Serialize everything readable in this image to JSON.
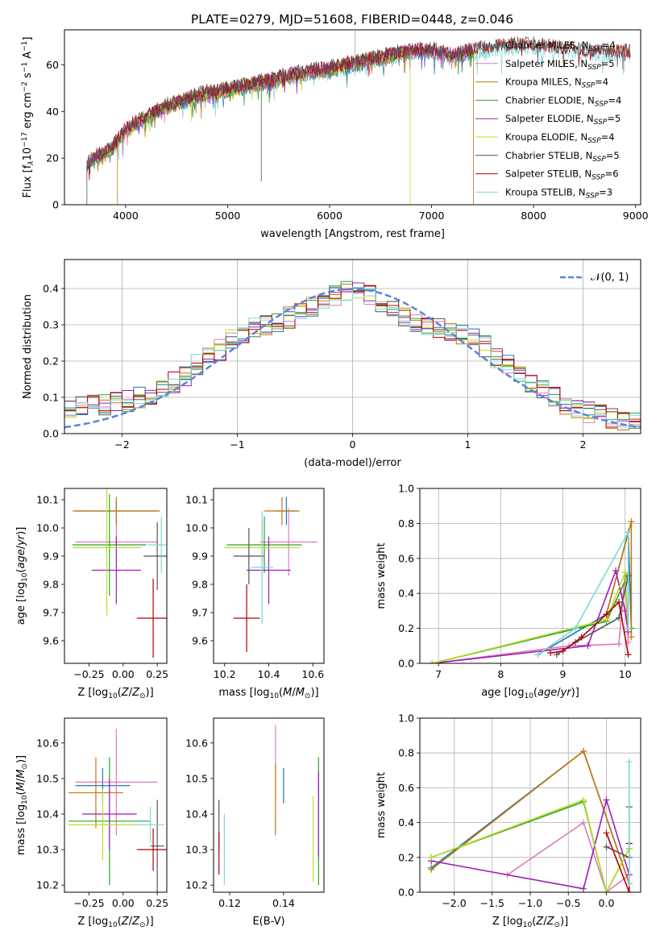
{
  "title": "PLATE=0279, MJD=51608, FIBERID=0448, z=0.046",
  "colors": {
    "Chabrier MILES": "#1f77b4",
    "Salpeter MILES": "#e377c2",
    "Kroupa MILES": "#c5780b",
    "Chabrier ELODIE": "#2ca02c",
    "Salpeter ELODIE": "#9b1fb4",
    "Kroupa ELODIE": "#bcdc22",
    "Chabrier STELIB": "#555555",
    "Salpeter STELIB": "#b40000",
    "Kroupa STELIB": "#7fd6dc",
    "gaussian": "#5b84dc"
  },
  "chart_data": [
    {
      "type": "line",
      "panel": "spectrum",
      "xlabel": "wavelength [Angstrom, rest frame]",
      "ylabel": "Flux [fλ10−17 erg cm−2 s−1 A−1]",
      "xlim": [
        3400,
        9050
      ],
      "ylim": [
        0,
        75
      ],
      "xticks": [
        "4000",
        "5000",
        "6000",
        "7000",
        "8000",
        "9000"
      ],
      "yticks": [
        "0",
        "20",
        "40",
        "60"
      ],
      "legend_placement": "upper-right",
      "legend": [
        {
          "model": "Chabrier MILES",
          "n": "4"
        },
        {
          "model": "Salpeter MILES",
          "n": "5"
        },
        {
          "model": "Kroupa MILES",
          "n": "4"
        },
        {
          "model": "Chabrier ELODIE",
          "n": "4"
        },
        {
          "model": "Salpeter ELODIE",
          "n": "5"
        },
        {
          "model": "Kroupa ELODIE",
          "n": "4"
        },
        {
          "model": "Chabrier STELIB",
          "n": "5"
        },
        {
          "model": "Salpeter STELIB",
          "n": "6"
        },
        {
          "model": "Kroupa STELIB",
          "n": "3"
        }
      ],
      "continuum": {
        "x": [
          3620,
          3700,
          3800,
          3900,
          4000,
          4100,
          4200,
          4300,
          4400,
          4600,
          4800,
          5000,
          5200,
          5400,
          5600,
          5800,
          6000,
          6200,
          6400,
          6600,
          6800,
          7000,
          7200,
          7400,
          7600,
          7800,
          8000,
          8200,
          8400,
          8600,
          8800,
          8950
        ],
        "y": [
          17,
          20,
          22,
          26,
          32,
          35,
          37,
          40,
          42,
          45,
          48,
          49,
          51,
          53,
          55,
          57,
          58,
          60,
          62,
          64,
          66,
          66,
          64,
          66,
          67,
          68,
          68,
          67,
          66,
          65,
          65,
          65
        ]
      }
    },
    {
      "type": "histogram",
      "panel": "residuals",
      "xlabel": "(data-model)/error",
      "ylabel": "Normed distribution",
      "xlim": [
        -2.5,
        2.5
      ],
      "ylim": [
        0,
        0.48
      ],
      "xticks": [
        "−2",
        "−1",
        "0",
        "1",
        "2"
      ],
      "yticks": [
        "0.0",
        "0.1",
        "0.2",
        "0.3",
        "0.4"
      ],
      "grid": true,
      "legend": "𝒩(0, 1)",
      "legend_placement": "upper-right",
      "bin_width": 0.1,
      "base_profile": [
        0.07,
        0.08,
        0.08,
        0.08,
        0.09,
        0.09,
        0.1,
        0.11,
        0.12,
        0.14,
        0.16,
        0.19,
        0.21,
        0.23,
        0.26,
        0.27,
        0.29,
        0.3,
        0.31,
        0.32,
        0.33,
        0.35,
        0.37,
        0.38,
        0.39,
        0.39,
        0.38,
        0.36,
        0.34,
        0.32,
        0.31,
        0.3,
        0.29,
        0.28,
        0.27,
        0.26,
        0.24,
        0.21,
        0.19,
        0.17,
        0.14,
        0.12,
        0.1,
        0.08,
        0.07,
        0.06,
        0.05,
        0.04,
        0.03,
        0.03
      ]
    },
    {
      "type": "scatter",
      "panel": "age-vs-Z",
      "xlabel": "Z [log10(Z/Z⊙)]",
      "ylabel": "age  [log10(age/yr)]",
      "xlim": [
        -0.43,
        0.32
      ],
      "ylim": [
        9.52,
        10.14
      ],
      "xticks": [
        "−0.25",
        "0.00",
        "0.25"
      ],
      "yticks": [
        "9.6",
        "9.7",
        "9.8",
        "9.9",
        "10.0",
        "10.1"
      ],
      "points": [
        {
          "model": "Chabrier MILES",
          "x": -0.05,
          "xerr": 0.3,
          "y": 10.06,
          "yerr": 0.04
        },
        {
          "model": "Salpeter MILES",
          "x": -0.05,
          "xerr": 0.3,
          "y": 9.95,
          "yerr": 0.08
        },
        {
          "model": "Kroupa MILES",
          "x": -0.05,
          "xerr": 0.32,
          "y": 10.06,
          "yerr": 0.05
        },
        {
          "model": "Chabrier ELODIE",
          "x": -0.1,
          "xerr": 0.27,
          "y": 9.94,
          "yerr": 0.18
        },
        {
          "model": "Salpeter ELODIE",
          "x": -0.05,
          "xerr": 0.18,
          "y": 9.85,
          "yerr": 0.12
        },
        {
          "model": "Kroupa ELODIE",
          "x": -0.12,
          "xerr": 0.25,
          "y": 9.93,
          "yerr": 0.24
        },
        {
          "model": "Chabrier STELIB",
          "x": 0.25,
          "xerr": 0.1,
          "y": 9.9,
          "yerr": 0.12
        },
        {
          "model": "Salpeter STELIB",
          "x": 0.22,
          "xerr": 0.12,
          "y": 9.68,
          "yerr": 0.14
        },
        {
          "model": "Kroupa STELIB",
          "x": 0.28,
          "xerr": 0.1,
          "y": 9.94,
          "yerr": 0.1
        }
      ]
    },
    {
      "type": "scatter",
      "panel": "age-vs-mass",
      "xlabel": "mass [log10(M/M⊙)]",
      "ylabel": "",
      "xlim": [
        10.15,
        10.65
      ],
      "ylim": [
        9.52,
        10.14
      ],
      "xticks": [
        "10.2",
        "10.4",
        "10.6"
      ],
      "yticks": [
        "9.6",
        "9.7",
        "9.8",
        "9.9",
        "10.0",
        "10.1"
      ],
      "points": [
        {
          "model": "Chabrier MILES",
          "x": 10.48,
          "xerr": 0.05,
          "y": 10.06,
          "yerr": 0.05
        },
        {
          "model": "Salpeter MILES",
          "x": 10.49,
          "xerr": 0.13,
          "y": 9.95,
          "yerr": 0.12
        },
        {
          "model": "Kroupa MILES",
          "x": 10.46,
          "xerr": 0.08,
          "y": 10.06,
          "yerr": 0.05
        },
        {
          "model": "Chabrier ELODIE",
          "x": 10.38,
          "xerr": 0.17,
          "y": 9.94,
          "yerr": 0.1
        },
        {
          "model": "Salpeter ELODIE",
          "x": 10.4,
          "xerr": 0.1,
          "y": 9.85,
          "yerr": 0.12
        },
        {
          "model": "Kroupa ELODIE",
          "x": 10.37,
          "xerr": 0.17,
          "y": 9.93,
          "yerr": 0.1
        },
        {
          "model": "Chabrier STELIB",
          "x": 10.31,
          "xerr": 0.07,
          "y": 9.9,
          "yerr": 0.1
        },
        {
          "model": "Salpeter STELIB",
          "x": 10.3,
          "xerr": 0.06,
          "y": 9.68,
          "yerr": 0.12
        },
        {
          "model": "Kroupa STELIB",
          "x": 10.37,
          "xerr": 0.05,
          "y": 9.86,
          "yerr": 0.2
        }
      ]
    },
    {
      "type": "line",
      "panel": "mass-weight-vs-age",
      "xlabel": "age  [log10(age/yr)]",
      "ylabel": "mass weight",
      "xlim": [
        6.7,
        10.25
      ],
      "ylim": [
        0,
        1
      ],
      "xticks": [
        "7",
        "8",
        "9",
        "10"
      ],
      "yticks": [
        "0.0",
        "0.2",
        "0.4",
        "0.6",
        "0.8",
        "1.0"
      ],
      "grid": true,
      "series": [
        {
          "model": "Chabrier MILES",
          "x": [
            8.6,
            9.7,
            10.05,
            10.1
          ],
          "y": [
            0.05,
            0.28,
            0.75,
            0.2
          ]
        },
        {
          "model": "Salpeter MILES",
          "x": [
            6.9,
            9.1,
            9.9,
            10.0,
            10.05
          ],
          "y": [
            0.0,
            0.1,
            0.11,
            0.52,
            0.12
          ]
        },
        {
          "model": "Kroupa MILES",
          "x": [
            9.7,
            10.1,
            10.1
          ],
          "y": [
            0.28,
            0.81,
            0.15
          ]
        },
        {
          "model": "Chabrier ELODIE",
          "x": [
            6.9,
            9.7,
            10.05,
            10.05
          ],
          "y": [
            0.0,
            0.24,
            0.51,
            0.2
          ]
        },
        {
          "model": "Salpeter ELODIE",
          "x": [
            6.9,
            9.4,
            9.85,
            10.0,
            10.05
          ],
          "y": [
            0.0,
            0.1,
            0.53,
            0.3,
            0.18
          ]
        },
        {
          "model": "Kroupa ELODIE",
          "x": [
            6.9,
            9.7,
            10.0,
            10.05
          ],
          "y": [
            0.0,
            0.25,
            0.52,
            0.2
          ]
        },
        {
          "model": "Chabrier STELIB",
          "x": [
            8.9,
            9.2,
            9.9,
            10.05
          ],
          "y": [
            0.05,
            0.12,
            0.26,
            0.5
          ]
        },
        {
          "model": "Salpeter STELIB",
          "x": [
            8.8,
            9.0,
            9.3,
            9.7,
            9.9,
            10.05
          ],
          "y": [
            0.06,
            0.07,
            0.15,
            0.28,
            0.35,
            0.05
          ]
        },
        {
          "model": "Kroupa STELIB",
          "x": [
            8.6,
            9.2,
            10.05,
            10.05
          ],
          "y": [
            0.05,
            0.2,
            0.75,
            0.2
          ]
        }
      ]
    },
    {
      "type": "scatter",
      "panel": "mass-vs-Z",
      "xlabel": "Z [log10(Z/Z⊙)]",
      "ylabel": "mass [log10(M/M⊙)]",
      "xlim": [
        -0.43,
        0.32
      ],
      "ylim": [
        10.18,
        10.67
      ],
      "xticks": [
        "−0.25",
        "0.00",
        "0.25"
      ],
      "yticks": [
        "10.2",
        "10.3",
        "10.4",
        "10.5",
        "10.6"
      ],
      "points": [
        {
          "model": "Chabrier MILES",
          "x": -0.15,
          "xerr": 0.2,
          "y": 10.48,
          "yerr": 0.05
        },
        {
          "model": "Salpeter MILES",
          "x": -0.05,
          "xerr": 0.3,
          "y": 10.49,
          "yerr": 0.15
        },
        {
          "model": "Kroupa MILES",
          "x": -0.2,
          "xerr": 0.2,
          "y": 10.46,
          "yerr": 0.1
        },
        {
          "model": "Chabrier ELODIE",
          "x": -0.1,
          "xerr": 0.3,
          "y": 10.38,
          "yerr": 0.18
        },
        {
          "model": "Salpeter ELODIE",
          "x": -0.1,
          "xerr": 0.2,
          "y": 10.4,
          "yerr": 0.1
        },
        {
          "model": "Kroupa ELODIE",
          "x": -0.15,
          "xerr": 0.25,
          "y": 10.37,
          "yerr": 0.1
        },
        {
          "model": "Chabrier STELIB",
          "x": 0.25,
          "xerr": 0.05,
          "y": 10.31,
          "yerr": 0.13
        },
        {
          "model": "Salpeter STELIB",
          "x": 0.22,
          "xerr": 0.12,
          "y": 10.3,
          "yerr": 0.06
        },
        {
          "model": "Kroupa STELIB",
          "x": 0.2,
          "xerr": 0.1,
          "y": 10.37,
          "yerr": 0.05
        }
      ]
    },
    {
      "type": "scatter",
      "panel": "mass-vs-ebv",
      "xlabel": "E(B-V)",
      "ylabel": "",
      "xlim": [
        0.114,
        0.155
      ],
      "ylim": [
        10.18,
        10.67
      ],
      "xticks": [
        "0.12",
        "0.14"
      ],
      "yticks": [
        "10.2",
        "10.3",
        "10.4",
        "10.5",
        "10.6"
      ],
      "points": [
        {
          "model": "Chabrier MILES",
          "x": 0.14,
          "xerr": 0,
          "y": 10.48,
          "yerr": 0.05
        },
        {
          "model": "Salpeter MILES",
          "x": 0.137,
          "xerr": 0,
          "y": 10.55,
          "yerr": 0.1
        },
        {
          "model": "Kroupa MILES",
          "x": 0.137,
          "xerr": 0,
          "y": 10.44,
          "yerr": 0.1
        },
        {
          "model": "Chabrier ELODIE",
          "x": 0.153,
          "xerr": 0,
          "y": 10.38,
          "yerr": 0.18
        },
        {
          "model": "Salpeter ELODIE",
          "x": 0.153,
          "xerr": 0,
          "y": 10.4,
          "yerr": 0.12
        },
        {
          "model": "Kroupa ELODIE",
          "x": 0.151,
          "xerr": 0,
          "y": 10.33,
          "yerr": 0.12
        },
        {
          "model": "Chabrier STELIB",
          "x": 0.116,
          "xerr": 0,
          "y": 10.37,
          "yerr": 0.07
        },
        {
          "model": "Salpeter STELIB",
          "x": 0.116,
          "xerr": 0,
          "y": 10.29,
          "yerr": 0.06
        },
        {
          "model": "Kroupa STELIB",
          "x": 0.118,
          "xerr": 0,
          "y": 10.3,
          "yerr": 0.1
        }
      ]
    },
    {
      "type": "line",
      "panel": "mass-weight-vs-Z",
      "xlabel": "Z [log10(Z/Z⊙)]",
      "ylabel": "mass weight",
      "xlim": [
        -2.45,
        0.45
      ],
      "ylim": [
        0,
        1
      ],
      "xticks": [
        "−2.0",
        "−1.5",
        "−1.0",
        "−0.5",
        "0.0"
      ],
      "yticks": [
        "0.0",
        "0.2",
        "0.4",
        "0.6",
        "0.8",
        "1.0"
      ],
      "grid": true,
      "series": [
        {
          "model": "Chabrier MILES",
          "x": [
            -2.3,
            -0.3,
            0.3
          ],
          "y": [
            0.14,
            0.81,
            0.05
          ]
        },
        {
          "model": "Salpeter MILES",
          "x": [
            -1.3,
            -0.3,
            0.0,
            0.3
          ],
          "y": [
            0.1,
            0.4,
            0.0,
            0.1
          ]
        },
        {
          "model": "Kroupa MILES",
          "x": [
            -2.3,
            -0.3,
            0.3
          ],
          "y": [
            0.13,
            0.81,
            0.05
          ]
        },
        {
          "model": "Chabrier ELODIE",
          "x": [
            -2.3,
            -0.3,
            0.0,
            0.3
          ],
          "y": [
            0.2,
            0.52,
            0.0,
            0.25
          ]
        },
        {
          "model": "Salpeter ELODIE",
          "x": [
            -2.3,
            -0.3,
            0.0,
            0.3
          ],
          "y": [
            0.18,
            0.02,
            0.53,
            0.1
          ]
        },
        {
          "model": "Kroupa ELODIE",
          "x": [
            -2.3,
            -0.3,
            0.0,
            0.3
          ],
          "y": [
            0.2,
            0.53,
            0.0,
            0.25
          ]
        },
        {
          "model": "Chabrier STELIB",
          "x": [
            0.0,
            0.3,
            0.3
          ],
          "y": [
            0.26,
            0.2,
            0.49
          ]
        },
        {
          "model": "Salpeter STELIB",
          "x": [
            0.0,
            0.3,
            0.3
          ],
          "y": [
            0.34,
            0.0,
            0.28
          ]
        },
        {
          "model": "Kroupa STELIB",
          "x": [
            0.3,
            0.3
          ],
          "y": [
            0.75,
            0.05
          ]
        }
      ]
    }
  ]
}
